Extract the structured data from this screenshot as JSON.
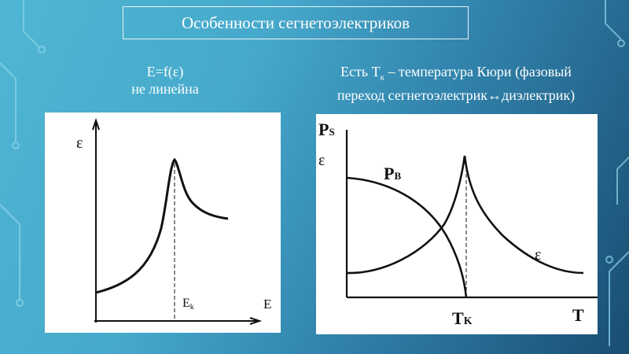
{
  "slide": {
    "title": "Особенности сегнетоэлектриков",
    "left_caption": [
      "E=f(ε)",
      "не линейна"
    ],
    "right_caption": {
      "line1_pre": "Есть Т",
      "line1_sub": "к",
      "line1_post": " – температура Кюри (фазовый",
      "line2": "переход сегнетоэлектрик↔диэлектрик)"
    }
  },
  "left_graph": {
    "y_label": "ε",
    "x_label": "E",
    "marker_main": "E",
    "marker_sub": "k"
  },
  "right_graph": {
    "y_label_1_main": "P",
    "y_label_1_sub": "S",
    "y_label_2": "ε",
    "curve_pb_main": "P",
    "curve_pb_sub": "B",
    "curve_eps": "ε",
    "marker_main": "T",
    "marker_sub": "K",
    "x_label": "T"
  },
  "colors": {
    "background_light": "#4fb6d3",
    "background_dark": "#1a4d72",
    "text": "#ffffff"
  }
}
